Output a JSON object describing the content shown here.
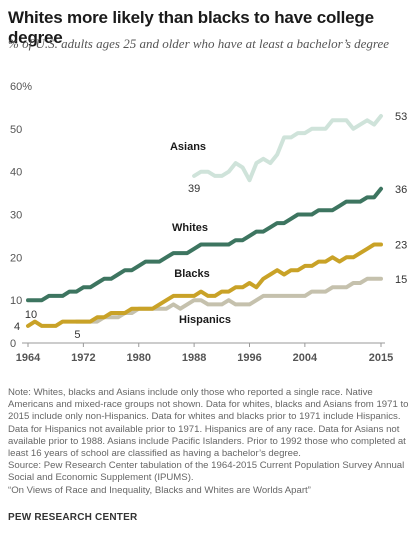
{
  "title": "Whites more likely than blacks to have college degree",
  "subtitle": "% of U.S. adults ages 25 and older who have at least a bachelor’s degree",
  "chart_data": {
    "type": "line",
    "title": "Whites more likely than blacks to have college degree",
    "subtitle": "% of U.S. adults ages 25 and older who have at least a bachelor’s degree",
    "xlabel": "",
    "ylabel": "",
    "xlim": [
      1964,
      2015
    ],
    "ylim": [
      0,
      60
    ],
    "x_ticks": [
      "1964",
      "1972",
      "1980",
      "1988",
      "1996",
      "2004",
      "2015"
    ],
    "y_ticks": [
      "0",
      "10",
      "20",
      "30",
      "40",
      "50",
      "60%"
    ],
    "grid": false,
    "legend": "inline labels",
    "colors": {
      "Whites": "#3d7560",
      "Blacks": "#c9a227",
      "Hispanics": "#c5c1ad",
      "Asians": "#cfe3da",
      "axis": "#888888",
      "text": "#333333"
    },
    "series": [
      {
        "name": "Whites",
        "x": [
          1964,
          1965,
          1966,
          1967,
          1968,
          1969,
          1970,
          1971,
          1972,
          1973,
          1974,
          1975,
          1976,
          1977,
          1978,
          1979,
          1980,
          1981,
          1982,
          1983,
          1984,
          1985,
          1986,
          1987,
          1988,
          1989,
          1990,
          1991,
          1992,
          1993,
          1994,
          1995,
          1996,
          1997,
          1998,
          1999,
          2000,
          2001,
          2002,
          2003,
          2004,
          2005,
          2006,
          2007,
          2008,
          2009,
          2010,
          2011,
          2012,
          2013,
          2014,
          2015
        ],
        "values": [
          10,
          10,
          10,
          11,
          11,
          11,
          12,
          12,
          13,
          13,
          14,
          15,
          15,
          16,
          17,
          17,
          18,
          19,
          19,
          19,
          20,
          21,
          21,
          21,
          22,
          23,
          23,
          23,
          23,
          23,
          24,
          24,
          25,
          26,
          26,
          27,
          28,
          28,
          29,
          30,
          30,
          30,
          31,
          31,
          31,
          32,
          33,
          33,
          33,
          34,
          34,
          36
        ]
      },
      {
        "name": "Blacks",
        "x": [
          1964,
          1965,
          1966,
          1967,
          1968,
          1969,
          1970,
          1971,
          1972,
          1973,
          1974,
          1975,
          1976,
          1977,
          1978,
          1979,
          1980,
          1981,
          1982,
          1983,
          1984,
          1985,
          1986,
          1987,
          1988,
          1989,
          1990,
          1991,
          1992,
          1993,
          1994,
          1995,
          1996,
          1997,
          1998,
          1999,
          2000,
          2001,
          2002,
          2003,
          2004,
          2005,
          2006,
          2007,
          2008,
          2009,
          2010,
          2011,
          2012,
          2013,
          2014,
          2015
        ],
        "values": [
          4,
          5,
          4,
          4,
          4,
          5,
          5,
          5,
          5,
          5,
          6,
          6,
          7,
          7,
          7,
          8,
          8,
          8,
          8,
          9,
          10,
          11,
          11,
          11,
          11,
          12,
          11,
          11,
          12,
          12,
          13,
          13,
          14,
          13,
          15,
          16,
          17,
          16,
          17,
          17,
          18,
          18,
          19,
          19,
          20,
          19,
          20,
          20,
          21,
          22,
          23,
          23
        ]
      },
      {
        "name": "Hispanics",
        "x": [
          1971,
          1972,
          1973,
          1974,
          1975,
          1976,
          1977,
          1978,
          1979,
          1980,
          1981,
          1982,
          1983,
          1984,
          1985,
          1986,
          1987,
          1988,
          1989,
          1990,
          1991,
          1992,
          1993,
          1994,
          1995,
          1996,
          1997,
          1998,
          1999,
          2000,
          2001,
          2002,
          2003,
          2004,
          2005,
          2006,
          2007,
          2008,
          2009,
          2010,
          2011,
          2012,
          2013,
          2014,
          2015
        ],
        "values": [
          5,
          5,
          5,
          5,
          6,
          6,
          6,
          7,
          7,
          8,
          8,
          8,
          8,
          8,
          9,
          8,
          9,
          10,
          10,
          9,
          9,
          9,
          10,
          9,
          9,
          9,
          10,
          11,
          11,
          11,
          11,
          11,
          11,
          11,
          12,
          12,
          12,
          13,
          13,
          13,
          14,
          14,
          15,
          15,
          15
        ]
      },
      {
        "name": "Asians",
        "x": [
          1988,
          1989,
          1990,
          1991,
          1992,
          1993,
          1994,
          1995,
          1996,
          1997,
          1998,
          1999,
          2000,
          2001,
          2002,
          2003,
          2004,
          2005,
          2006,
          2007,
          2008,
          2009,
          2010,
          2011,
          2012,
          2013,
          2014,
          2015
        ],
        "values": [
          39,
          40,
          40,
          39,
          39,
          40,
          42,
          41,
          38,
          42,
          43,
          42,
          44,
          48,
          48,
          49,
          49,
          50,
          50,
          50,
          52,
          52,
          52,
          50,
          51,
          52,
          51,
          53
        ]
      }
    ],
    "annotations": [
      {
        "series": "Whites",
        "text": "Whites"
      },
      {
        "series": "Blacks",
        "text": "Blacks"
      },
      {
        "series": "Hispanics",
        "text": "Hispanics"
      },
      {
        "series": "Asians",
        "text": "Asians"
      },
      {
        "series": "Whites",
        "text": "10"
      },
      {
        "series": "Blacks",
        "text": "4"
      },
      {
        "series": "Hispanics",
        "text": "5"
      },
      {
        "series": "Asians",
        "text": "39"
      },
      {
        "series": "Asians",
        "text": "53"
      },
      {
        "series": "Whites",
        "text": "36"
      },
      {
        "series": "Blacks",
        "text": "23"
      },
      {
        "series": "Hispanics",
        "text": "15"
      }
    ]
  },
  "notes": [
    "Note: Whites, blacks and Asians include only those who reported a single race. Native Americans and mixed-race groups not shown. Data for whites, blacks and Asians from 1971 to 2015 include only non-Hispanics. Data for whites and blacks prior to 1971 include Hispanics. Data for Hispanics not available prior to 1971. Hispanics are of any race. Data for Asians not available prior to 1988. Asians include Pacific Islanders. Prior to 1992 those who completed at least 16 years of school are classified as having a bachelor’s degree.",
    "Source: Pew Research Center tabulation of the 1964-2015 Current Population Survey Annual Social and Economic Supplement (IPUMS).",
    "“On Views of Race and Inequality, Blacks and Whites are Worlds Apart”"
  ],
  "brand": "PEW RESEARCH CENTER"
}
